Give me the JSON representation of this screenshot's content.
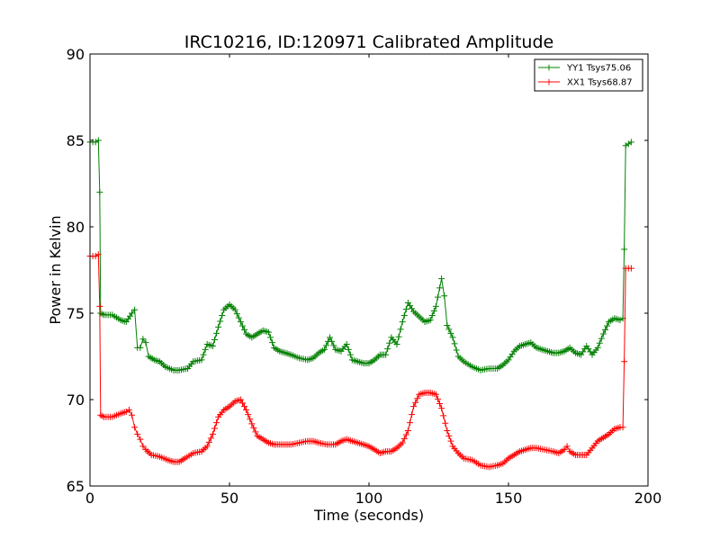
{
  "chart_data": {
    "type": "line",
    "title": "IRC10216, ID:120971 Calibrated Amplitude",
    "xlabel": "Time (seconds)",
    "ylabel": "Power in Kelvin",
    "xlim": [
      0,
      200
    ],
    "ylim": [
      65,
      90
    ],
    "xticks": [
      0,
      50,
      100,
      150,
      200
    ],
    "yticks": [
      65,
      70,
      75,
      80,
      85,
      90
    ],
    "grid": false,
    "legend_position": "top-right",
    "marker": "plus",
    "series": [
      {
        "name": "YY1 Tsys75.06",
        "color": "#008000",
        "points": [
          [
            0,
            84.9
          ],
          [
            1,
            84.9
          ],
          [
            2,
            84.9
          ],
          [
            3,
            85.0
          ],
          [
            3.5,
            82.0
          ],
          [
            3.8,
            75.0
          ],
          [
            5,
            74.9
          ],
          [
            8,
            74.9
          ],
          [
            11,
            74.6
          ],
          [
            13,
            74.5
          ],
          [
            15,
            75.0
          ],
          [
            16,
            75.2
          ],
          [
            17,
            73.0
          ],
          [
            18,
            73.0
          ],
          [
            19,
            73.5
          ],
          [
            20,
            73.3
          ],
          [
            21,
            72.5
          ],
          [
            23,
            72.3
          ],
          [
            25,
            72.2
          ],
          [
            27,
            71.9
          ],
          [
            30,
            71.7
          ],
          [
            32,
            71.7
          ],
          [
            35,
            71.8
          ],
          [
            37,
            72.2
          ],
          [
            40,
            72.3
          ],
          [
            42,
            73.2
          ],
          [
            44,
            73.1
          ],
          [
            46,
            74.2
          ],
          [
            48,
            75.2
          ],
          [
            50,
            75.5
          ],
          [
            52,
            75.2
          ],
          [
            54,
            74.5
          ],
          [
            56,
            73.8
          ],
          [
            58,
            73.6
          ],
          [
            60,
            73.8
          ],
          [
            62,
            74.0
          ],
          [
            64,
            73.9
          ],
          [
            66,
            73.0
          ],
          [
            68,
            72.8
          ],
          [
            70,
            72.7
          ],
          [
            72,
            72.6
          ],
          [
            75,
            72.4
          ],
          [
            78,
            72.3
          ],
          [
            80,
            72.4
          ],
          [
            82,
            72.7
          ],
          [
            84,
            72.9
          ],
          [
            86,
            73.6
          ],
          [
            88,
            72.9
          ],
          [
            90,
            72.8
          ],
          [
            92,
            73.2
          ],
          [
            94,
            72.3
          ],
          [
            96,
            72.2
          ],
          [
            98,
            72.1
          ],
          [
            100,
            72.1
          ],
          [
            102,
            72.3
          ],
          [
            104,
            72.6
          ],
          [
            106,
            72.6
          ],
          [
            108,
            73.6
          ],
          [
            110,
            73.2
          ],
          [
            112,
            74.5
          ],
          [
            114,
            75.6
          ],
          [
            116,
            75.1
          ],
          [
            118,
            74.8
          ],
          [
            120,
            74.5
          ],
          [
            122,
            74.6
          ],
          [
            124,
            75.4
          ],
          [
            126,
            77.0
          ],
          [
            127,
            76.0
          ],
          [
            128,
            74.3
          ],
          [
            130,
            73.6
          ],
          [
            132,
            72.5
          ],
          [
            134,
            72.2
          ],
          [
            137,
            71.9
          ],
          [
            140,
            71.7
          ],
          [
            143,
            71.8
          ],
          [
            146,
            71.8
          ],
          [
            148,
            72.0
          ],
          [
            150,
            72.3
          ],
          [
            152,
            72.8
          ],
          [
            154,
            73.1
          ],
          [
            156,
            73.2
          ],
          [
            158,
            73.3
          ],
          [
            160,
            73.0
          ],
          [
            162,
            72.9
          ],
          [
            164,
            72.8
          ],
          [
            166,
            72.7
          ],
          [
            168,
            72.7
          ],
          [
            170,
            72.8
          ],
          [
            172,
            73.0
          ],
          [
            174,
            72.7
          ],
          [
            176,
            72.6
          ],
          [
            178,
            73.1
          ],
          [
            180,
            72.6
          ],
          [
            182,
            73.0
          ],
          [
            184,
            73.8
          ],
          [
            186,
            74.5
          ],
          [
            188,
            74.7
          ],
          [
            190,
            74.6
          ],
          [
            191,
            74.7
          ],
          [
            191.5,
            78.7
          ],
          [
            192,
            84.7
          ],
          [
            193,
            84.8
          ],
          [
            194,
            84.9
          ]
        ]
      },
      {
        "name": "XX1 Tsys68.87",
        "color": "#ff0000",
        "points": [
          [
            0,
            78.3
          ],
          [
            1,
            78.3
          ],
          [
            2,
            78.3
          ],
          [
            3,
            78.4
          ],
          [
            3.5,
            75.4
          ],
          [
            3.8,
            69.1
          ],
          [
            5,
            69.0
          ],
          [
            8,
            69.0
          ],
          [
            11,
            69.2
          ],
          [
            13,
            69.3
          ],
          [
            14,
            69.4
          ],
          [
            15,
            69.1
          ],
          [
            16,
            68.4
          ],
          [
            17,
            68.0
          ],
          [
            18,
            67.7
          ],
          [
            19,
            67.3
          ],
          [
            20,
            67.1
          ],
          [
            22,
            66.8
          ],
          [
            25,
            66.7
          ],
          [
            28,
            66.5
          ],
          [
            30,
            66.4
          ],
          [
            32,
            66.4
          ],
          [
            34,
            66.6
          ],
          [
            37,
            66.9
          ],
          [
            40,
            67.0
          ],
          [
            42,
            67.3
          ],
          [
            44,
            68.0
          ],
          [
            46,
            69.0
          ],
          [
            48,
            69.4
          ],
          [
            50,
            69.6
          ],
          [
            52,
            69.9
          ],
          [
            54,
            70.0
          ],
          [
            56,
            69.4
          ],
          [
            58,
            68.6
          ],
          [
            60,
            67.9
          ],
          [
            62,
            67.7
          ],
          [
            64,
            67.5
          ],
          [
            66,
            67.4
          ],
          [
            70,
            67.4
          ],
          [
            72,
            67.4
          ],
          [
            75,
            67.5
          ],
          [
            78,
            67.6
          ],
          [
            80,
            67.6
          ],
          [
            82,
            67.5
          ],
          [
            85,
            67.4
          ],
          [
            88,
            67.4
          ],
          [
            90,
            67.6
          ],
          [
            92,
            67.7
          ],
          [
            94,
            67.6
          ],
          [
            96,
            67.5
          ],
          [
            98,
            67.4
          ],
          [
            100,
            67.3
          ],
          [
            102,
            67.1
          ],
          [
            104,
            66.9
          ],
          [
            106,
            67.0
          ],
          [
            108,
            67.0
          ],
          [
            110,
            67.2
          ],
          [
            112,
            67.5
          ],
          [
            114,
            68.2
          ],
          [
            116,
            69.6
          ],
          [
            118,
            70.3
          ],
          [
            120,
            70.4
          ],
          [
            122,
            70.4
          ],
          [
            124,
            70.3
          ],
          [
            126,
            69.5
          ],
          [
            128,
            68.2
          ],
          [
            130,
            67.3
          ],
          [
            132,
            66.9
          ],
          [
            134,
            66.6
          ],
          [
            137,
            66.5
          ],
          [
            140,
            66.2
          ],
          [
            143,
            66.1
          ],
          [
            146,
            66.2
          ],
          [
            148,
            66.3
          ],
          [
            150,
            66.6
          ],
          [
            152,
            66.8
          ],
          [
            154,
            67.0
          ],
          [
            156,
            67.1
          ],
          [
            158,
            67.2
          ],
          [
            160,
            67.2
          ],
          [
            163,
            67.1
          ],
          [
            166,
            67.0
          ],
          [
            168,
            66.9
          ],
          [
            170,
            67.1
          ],
          [
            171,
            67.3
          ],
          [
            172,
            67.0
          ],
          [
            174,
            66.8
          ],
          [
            176,
            66.8
          ],
          [
            178,
            66.8
          ],
          [
            180,
            67.2
          ],
          [
            182,
            67.6
          ],
          [
            184,
            67.8
          ],
          [
            186,
            68.0
          ],
          [
            188,
            68.3
          ],
          [
            190,
            68.4
          ],
          [
            191,
            68.4
          ],
          [
            191.5,
            72.2
          ],
          [
            192,
            77.6
          ],
          [
            193,
            77.6
          ],
          [
            194,
            77.6
          ]
        ]
      }
    ]
  }
}
